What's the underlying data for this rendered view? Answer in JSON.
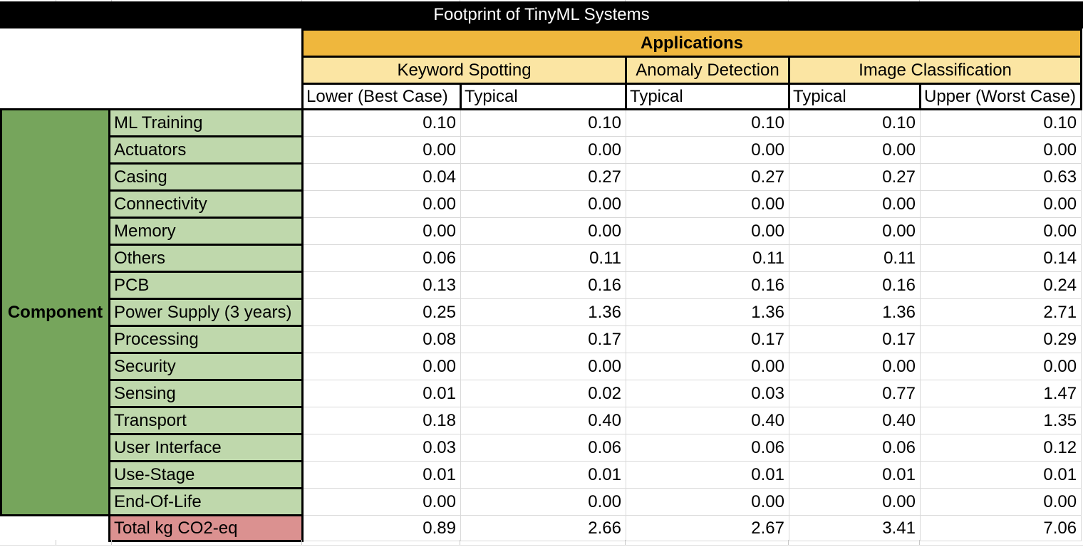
{
  "title": "Footprint of TinyML Systems",
  "header": {
    "applications_label": "Applications",
    "groups": [
      {
        "label": "Keyword Spotting",
        "span": 2
      },
      {
        "label": "Anomaly Detection",
        "span": 1
      },
      {
        "label": "Image Classification",
        "span": 2
      }
    ],
    "column_labels": [
      "Lower (Best Case)",
      "Typical",
      "Typical",
      "Typical",
      "Upper (Worst Case)"
    ]
  },
  "component_label": "Component",
  "rows": [
    {
      "label": "ML Training",
      "values": [
        "0.10",
        "0.10",
        "0.10",
        "0.10",
        "0.10"
      ]
    },
    {
      "label": "Actuators",
      "values": [
        "0.00",
        "0.00",
        "0.00",
        "0.00",
        "0.00"
      ]
    },
    {
      "label": "Casing",
      "values": [
        "0.04",
        "0.27",
        "0.27",
        "0.27",
        "0.63"
      ]
    },
    {
      "label": "Connectivity",
      "values": [
        "0.00",
        "0.00",
        "0.00",
        "0.00",
        "0.00"
      ]
    },
    {
      "label": "Memory",
      "values": [
        "0.00",
        "0.00",
        "0.00",
        "0.00",
        "0.00"
      ]
    },
    {
      "label": "Others",
      "values": [
        "0.06",
        "0.11",
        "0.11",
        "0.11",
        "0.14"
      ]
    },
    {
      "label": "PCB",
      "values": [
        "0.13",
        "0.16",
        "0.16",
        "0.16",
        "0.24"
      ]
    },
    {
      "label": "Power Supply (3 years)",
      "values": [
        "0.25",
        "1.36",
        "1.36",
        "1.36",
        "2.71"
      ]
    },
    {
      "label": "Processing",
      "values": [
        "0.08",
        "0.17",
        "0.17",
        "0.17",
        "0.29"
      ]
    },
    {
      "label": "Security",
      "values": [
        "0.00",
        "0.00",
        "0.00",
        "0.00",
        "0.00"
      ]
    },
    {
      "label": "Sensing",
      "values": [
        "0.01",
        "0.02",
        "0.03",
        "0.77",
        "1.47"
      ]
    },
    {
      "label": "Transport",
      "values": [
        "0.18",
        "0.40",
        "0.40",
        "0.40",
        "1.35"
      ]
    },
    {
      "label": "User Interface",
      "values": [
        "0.03",
        "0.06",
        "0.06",
        "0.06",
        "0.12"
      ]
    },
    {
      "label": "Use-Stage",
      "values": [
        "0.01",
        "0.01",
        "0.01",
        "0.01",
        "0.01"
      ]
    },
    {
      "label": "End-Of-Life",
      "values": [
        "0.00",
        "0.00",
        "0.00",
        "0.00",
        "0.00"
      ]
    }
  ],
  "total_row": {
    "label": "Total kg CO2-eq",
    "values": [
      "0.89",
      "2.66",
      "2.67",
      "3.41",
      "7.06"
    ]
  },
  "colors": {
    "title_bar": "#000000",
    "applications_bg": "#EFB73D",
    "group_bg": "#FBE5A3",
    "component_bg": "#76A55C",
    "row_label_bg": "#BFD8AC",
    "total_bg": "#DB9190",
    "gridline": "#D9D9D9",
    "border": "#000000"
  }
}
